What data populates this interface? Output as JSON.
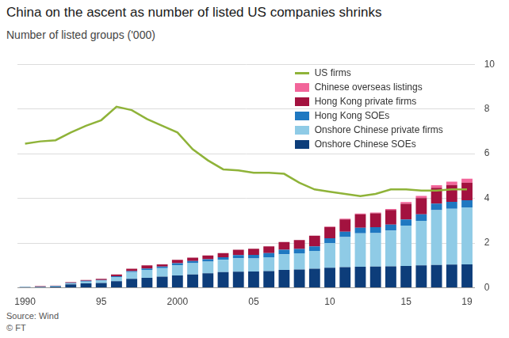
{
  "chart_data": {
    "type": "bar",
    "title": "China on the ascent as number of listed US companies shrinks",
    "subtitle": "Number of listed groups ('000)",
    "source": "Source: Wind",
    "credit": "© FT",
    "stacked": true,
    "grid": true,
    "legend": "upper right",
    "categories": [
      "1990",
      null,
      null,
      null,
      null,
      "95",
      null,
      null,
      null,
      null,
      "2000",
      null,
      null,
      null,
      null,
      "05",
      null,
      null,
      null,
      null,
      "10",
      null,
      null,
      null,
      null,
      "15",
      null,
      null,
      null,
      "19"
    ],
    "ylim": [
      0,
      10
    ],
    "yticks": [
      0,
      2,
      4,
      6,
      8,
      10
    ],
    "series": [
      {
        "name": "US firms",
        "type": "line",
        "color": "#8fb339",
        "values": [
          6.45,
          6.55,
          6.6,
          6.95,
          7.25,
          7.5,
          8.1,
          7.95,
          7.55,
          7.25,
          6.95,
          6.2,
          5.7,
          5.3,
          5.25,
          5.15,
          5.15,
          5.1,
          4.7,
          4.4,
          4.3,
          4.2,
          4.1,
          4.2,
          4.4,
          4.4,
          4.35,
          4.35,
          4.4,
          4.4
        ]
      },
      {
        "name": "Chinese overseas listings",
        "type": "bar",
        "color": "#f2659a",
        "values": [
          0,
          0,
          0,
          0,
          0,
          0,
          0,
          0,
          0,
          0,
          0,
          0,
          0,
          0,
          0,
          0,
          0,
          0,
          0,
          0,
          0.02,
          0.03,
          0.03,
          0.04,
          0.05,
          0.08,
          0.1,
          0.12,
          0.15,
          0.18
        ]
      },
      {
        "name": "Hong Kong private firms",
        "type": "bar",
        "color": "#a3123f",
        "values": [
          0.005,
          0.01,
          0.01,
          0.03,
          0.04,
          0.05,
          0.08,
          0.1,
          0.14,
          0.1,
          0.15,
          0.15,
          0.17,
          0.18,
          0.24,
          0.28,
          0.3,
          0.35,
          0.4,
          0.48,
          0.5,
          0.55,
          0.6,
          0.62,
          0.65,
          0.7,
          0.72,
          0.7,
          0.75,
          0.78
        ]
      },
      {
        "name": "Hong Kong SOEs",
        "type": "bar",
        "color": "#1f78c1",
        "values": [
          0.005,
          0.01,
          0.01,
          0.02,
          0.03,
          0.03,
          0.04,
          0.05,
          0.06,
          0.07,
          0.1,
          0.1,
          0.11,
          0.12,
          0.14,
          0.16,
          0.18,
          0.2,
          0.2,
          0.2,
          0.22,
          0.24,
          0.25,
          0.26,
          0.27,
          0.28,
          0.29,
          0.3,
          0.31,
          0.32
        ]
      },
      {
        "name": "Onshore Chinese private firms",
        "type": "bar",
        "color": "#8fcbe6",
        "values": [
          0.01,
          0.01,
          0.02,
          0.05,
          0.08,
          0.1,
          0.18,
          0.3,
          0.35,
          0.38,
          0.45,
          0.5,
          0.52,
          0.55,
          0.6,
          0.58,
          0.62,
          0.7,
          0.72,
          0.8,
          1.1,
          1.35,
          1.5,
          1.5,
          1.6,
          1.8,
          2.0,
          2.45,
          2.5,
          2.55
        ]
      },
      {
        "name": "Onshore Chinese SOEs",
        "type": "bar",
        "color": "#0d3d7a",
        "values": [
          0.03,
          0.04,
          0.06,
          0.15,
          0.2,
          0.22,
          0.3,
          0.4,
          0.45,
          0.5,
          0.55,
          0.6,
          0.65,
          0.7,
          0.72,
          0.73,
          0.75,
          0.8,
          0.82,
          0.85,
          0.9,
          0.92,
          0.94,
          0.95,
          0.96,
          0.98,
          1.0,
          1.02,
          1.04,
          1.05
        ]
      }
    ]
  }
}
